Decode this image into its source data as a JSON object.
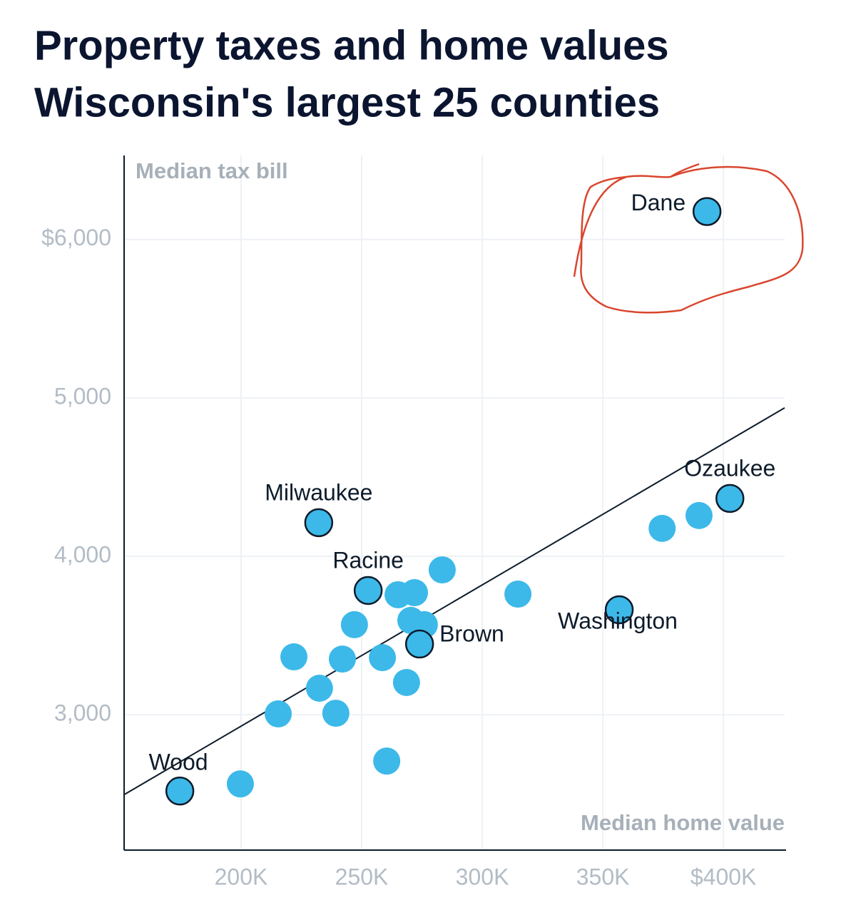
{
  "chart_data": {
    "type": "scatter",
    "title": "Property taxes and home values",
    "subtitle": "Wisconsin's largest 25 counties",
    "y_label": "Median tax bill",
    "x_label": "Median home value",
    "color": "#3cb9e9",
    "grid": true,
    "xlim": [
      151500,
      425400
    ],
    "ylim": [
      2145,
      6530
    ],
    "xticks": [
      {
        "value": 200000,
        "label": "200K"
      },
      {
        "value": 250000,
        "label": "250K"
      },
      {
        "value": 300000,
        "label": "300K"
      },
      {
        "value": 350000,
        "label": "350K"
      },
      {
        "value": 400000,
        "label": "$400K"
      }
    ],
    "yticks": [
      {
        "value": 3000,
        "label": "3,000"
      },
      {
        "value": 4000,
        "label": "4,000"
      },
      {
        "value": 5000,
        "label": "5,000"
      },
      {
        "value": 6000,
        "label": "$6,000"
      }
    ],
    "labels": [
      "Dane",
      "Ozaukee",
      "Milwaukee",
      "Racine",
      "Washington",
      "Brown",
      "Wood",
      null,
      null,
      null,
      null,
      null,
      null,
      null,
      null,
      null,
      null,
      null,
      null,
      null,
      null,
      null,
      null,
      null,
      null
    ],
    "x": [
      393200,
      402700,
      232200,
      252700,
      356800,
      274000,
      174600,
      389900,
      374600,
      283400,
      265100,
      271900,
      314800,
      247000,
      270400,
      276000,
      221900,
      242000,
      258600,
      232500,
      268600,
      215400,
      239300,
      260400,
      199700
    ],
    "values": [
      6176,
      4365,
      4212,
      3784,
      3662,
      3446,
      2518,
      4257,
      4176,
      3914,
      3757,
      3770,
      3761,
      3568,
      3595,
      3568,
      3365,
      3351,
      3360,
      3167,
      3203,
      3005,
      3009,
      2707,
      2563
    ],
    "trendline": {
      "x": [
        151500,
        425400
      ],
      "y": [
        2495,
        4937
      ]
    }
  }
}
